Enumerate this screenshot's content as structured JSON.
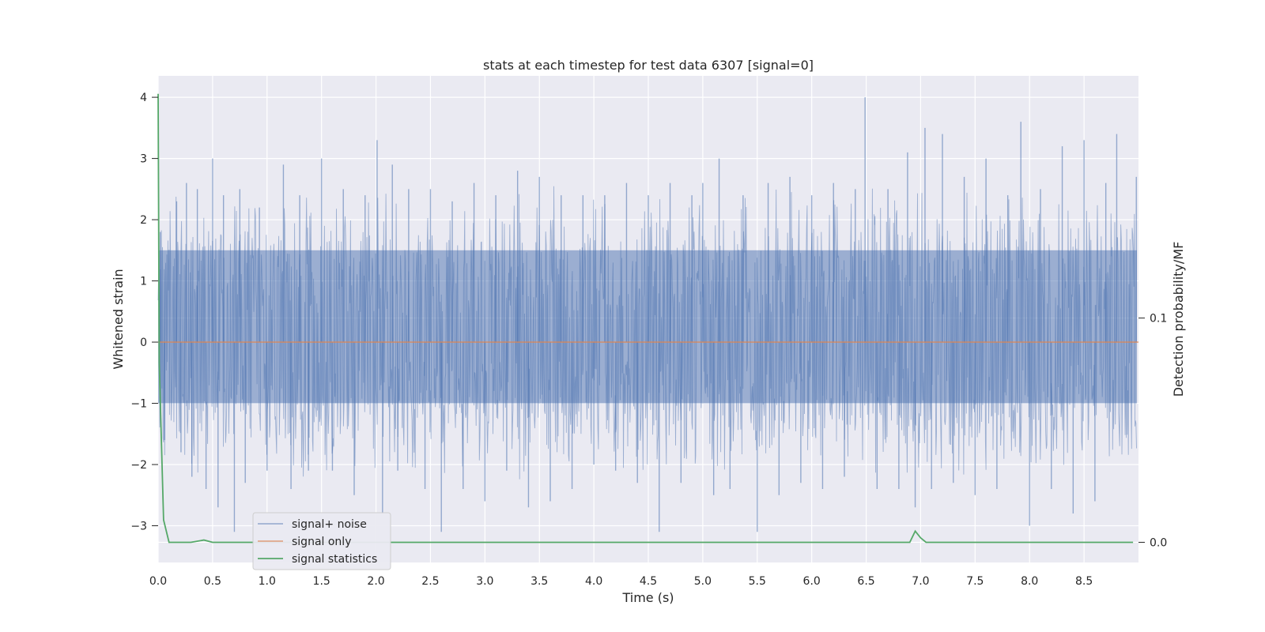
{
  "chart_data": {
    "type": "line",
    "title": "stats at each timestep for test data 6307 [signal=0]",
    "xlabel": "Time (s)",
    "ylabel": "Whitened strain",
    "y2label": "Detection probability/MF",
    "xlim": [
      0.0,
      9.0
    ],
    "ylim": [
      -3.6,
      4.35
    ],
    "y2lim": [
      -0.009,
      0.208
    ],
    "x_ticks": [
      "0.0",
      "0.5",
      "1.0",
      "1.5",
      "2.0",
      "2.5",
      "3.0",
      "3.5",
      "4.0",
      "4.5",
      "5.0",
      "5.5",
      "6.0",
      "6.5",
      "7.0",
      "7.5",
      "8.0",
      "8.5"
    ],
    "y_ticks": [
      "−3",
      "−2",
      "−1",
      "0",
      "1",
      "2",
      "3",
      "4"
    ],
    "y2_ticks": [
      "0.0",
      "0.1"
    ],
    "grid": true,
    "legend_position": "lower-left",
    "colors": {
      "background": "#eaeaf2",
      "noise": "#4c72b0",
      "signal": "#dd8452",
      "stats": "#55a868"
    },
    "series": [
      {
        "name": "signal+ noise",
        "axis": "left",
        "description_spikes": {
          "x": [
            0.02,
            0.06,
            0.17,
            0.21,
            0.26,
            0.31,
            0.36,
            0.44,
            0.5,
            0.55,
            0.6,
            0.7,
            0.75,
            0.8,
            0.93,
            1.0,
            1.15,
            1.22,
            1.3,
            1.38,
            1.5,
            1.6,
            1.7,
            1.8,
            1.9,
            2.01,
            2.06,
            2.15,
            2.2,
            2.3,
            2.45,
            2.5,
            2.6,
            2.7,
            2.8,
            2.9,
            3.0,
            3.1,
            3.2,
            3.3,
            3.4,
            3.5,
            3.6,
            3.7,
            3.8,
            3.9,
            4.0,
            4.1,
            4.2,
            4.3,
            4.4,
            4.5,
            4.6,
            4.7,
            4.8,
            4.9,
            5.0,
            5.1,
            5.15,
            5.25,
            5.37,
            5.5,
            5.6,
            5.7,
            5.8,
            5.9,
            6.0,
            6.1,
            6.2,
            6.3,
            6.4,
            6.49,
            6.6,
            6.7,
            6.8,
            6.88,
            6.95,
            7.04,
            7.1,
            7.2,
            7.3,
            7.4,
            7.5,
            7.6,
            7.7,
            7.8,
            7.92,
            8.0,
            8.1,
            8.2,
            8.3,
            8.4,
            8.5,
            8.6,
            8.7,
            8.8,
            8.98
          ],
          "y": [
            1.8,
            -1.6,
            2.3,
            -1.8,
            2.6,
            -2.2,
            2.5,
            -2.4,
            3.0,
            -2.7,
            2.4,
            -3.1,
            2.5,
            -2.3,
            2.2,
            -2.1,
            2.9,
            -2.4,
            2.4,
            -2.1,
            3.0,
            -2.1,
            2.5,
            -2.5,
            2.4,
            3.3,
            -2.8,
            2.9,
            -2.1,
            2.5,
            -2.4,
            2.5,
            -3.1,
            2.3,
            -2.4,
            2.6,
            -2.6,
            2.4,
            -2.1,
            2.8,
            -2.7,
            2.7,
            -2.6,
            2.4,
            -2.4,
            2.4,
            -2.0,
            2.4,
            -2.1,
            2.6,
            -2.3,
            2.4,
            -3.1,
            2.6,
            -2.3,
            2.4,
            2.6,
            -2.5,
            3.0,
            -2.4,
            2.4,
            -3.1,
            2.6,
            -2.5,
            2.7,
            -2.3,
            2.4,
            -2.4,
            2.6,
            -2.2,
            2.5,
            4.0,
            -2.4,
            2.5,
            -2.4,
            3.1,
            -2.7,
            3.5,
            -2.4,
            3.4,
            -2.3,
            2.7,
            -2.5,
            3.0,
            -2.4,
            2.4,
            3.6,
            -3.0,
            2.5,
            -2.4,
            3.2,
            -2.8,
            3.3,
            -2.6,
            2.6,
            3.4,
            2.7
          ],
          "baseline_range": [
            -1.0,
            1.5
          ]
        }
      },
      {
        "name": "signal only",
        "axis": "left",
        "x": [
          0.0,
          9.0
        ],
        "y": [
          0.0,
          0.0
        ]
      },
      {
        "name": "signal statistics",
        "axis": "right",
        "x": [
          0.0,
          0.01,
          0.05,
          0.1,
          0.3,
          0.42,
          0.5,
          6.85,
          6.9,
          6.95,
          7.0,
          7.05,
          8.95
        ],
        "y": [
          0.2,
          0.08,
          0.01,
          0.0,
          0.0,
          0.001,
          0.0,
          0.0,
          0.0,
          0.005,
          0.002,
          0.0,
          0.0
        ]
      }
    ]
  }
}
